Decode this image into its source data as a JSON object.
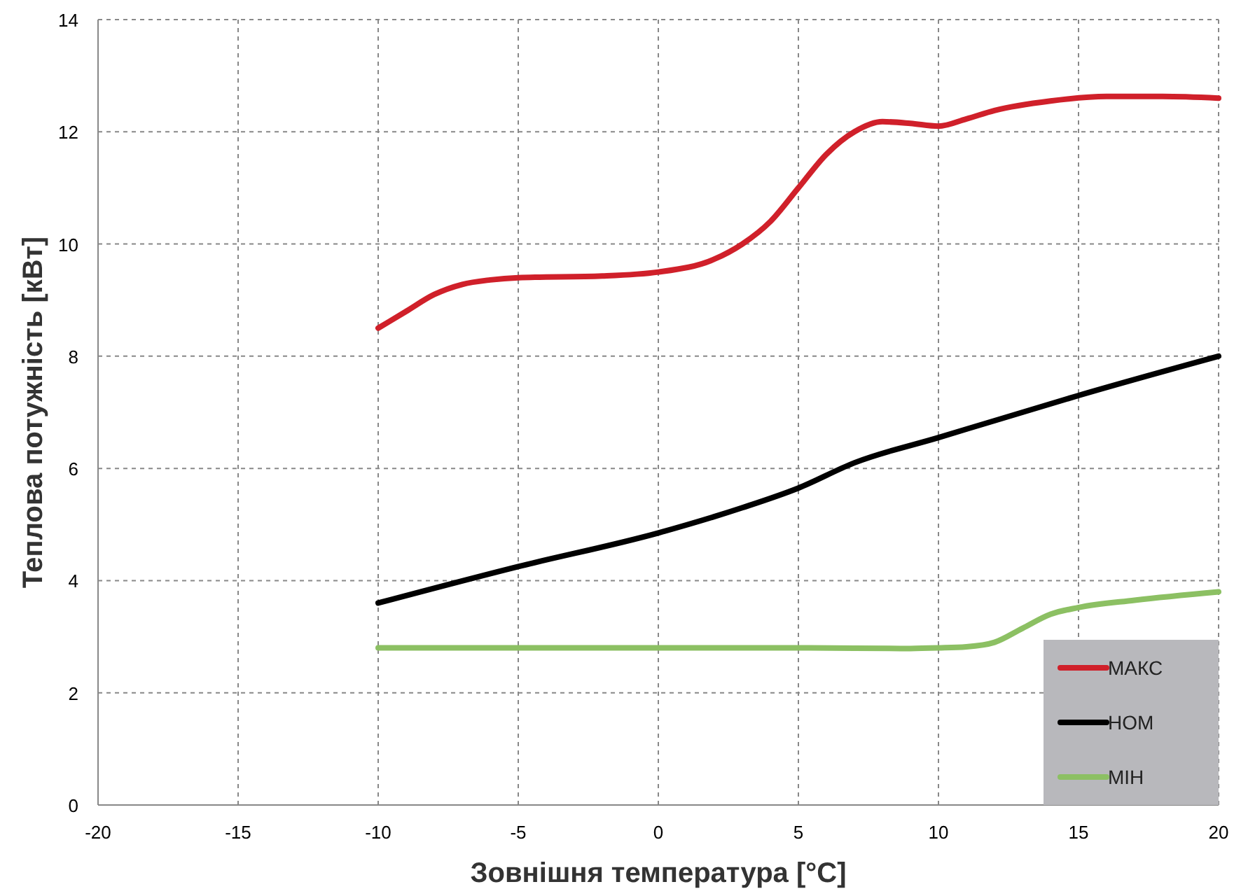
{
  "chart_data": {
    "type": "line",
    "xlabel": "Зовнішня температура [°C]",
    "ylabel": "Теплова потужність [кВт]",
    "xlim": [
      -20,
      20
    ],
    "ylim": [
      0,
      14
    ],
    "xticks": [
      -20,
      -15,
      -10,
      -5,
      0,
      5,
      10,
      15,
      20
    ],
    "yticks": [
      0,
      2,
      4,
      6,
      8,
      10,
      12,
      14
    ],
    "grid": true,
    "legend": "bottom right",
    "line_style": "solid",
    "marker": "none",
    "series": [
      {
        "name": "МАКС",
        "color": "#d0202a",
        "x": [
          -10,
          -9,
          -8,
          -7,
          -6,
          -5,
          -2,
          0,
          2,
          3,
          4,
          5,
          6,
          7,
          8,
          9,
          10,
          11,
          12,
          14,
          16,
          18,
          20
        ],
        "values": [
          8.5,
          8.8,
          9.1,
          9.28,
          9.36,
          9.4,
          9.43,
          9.5,
          9.73,
          10.0,
          10.4,
          11.0,
          11.6,
          12.0,
          12.18,
          12.15,
          12.1,
          12.23,
          12.38,
          12.55,
          12.63,
          12.63,
          12.6
        ]
      },
      {
        "name": "НОМ",
        "color": "#000000",
        "x": [
          -10,
          -5,
          0,
          3,
          5,
          7,
          10,
          12,
          15,
          20
        ],
        "values": [
          3.6,
          4.25,
          4.85,
          5.3,
          5.65,
          6.1,
          6.55,
          6.85,
          7.3,
          8.0
        ]
      },
      {
        "name": "МІН",
        "color": "#8cc063",
        "x": [
          -10,
          -5,
          0,
          5,
          9,
          10,
          11,
          12,
          13,
          14,
          15,
          17,
          20
        ],
        "values": [
          2.8,
          2.8,
          2.8,
          2.8,
          2.79,
          2.8,
          2.82,
          2.9,
          3.15,
          3.4,
          3.52,
          3.65,
          3.8
        ]
      }
    ]
  }
}
